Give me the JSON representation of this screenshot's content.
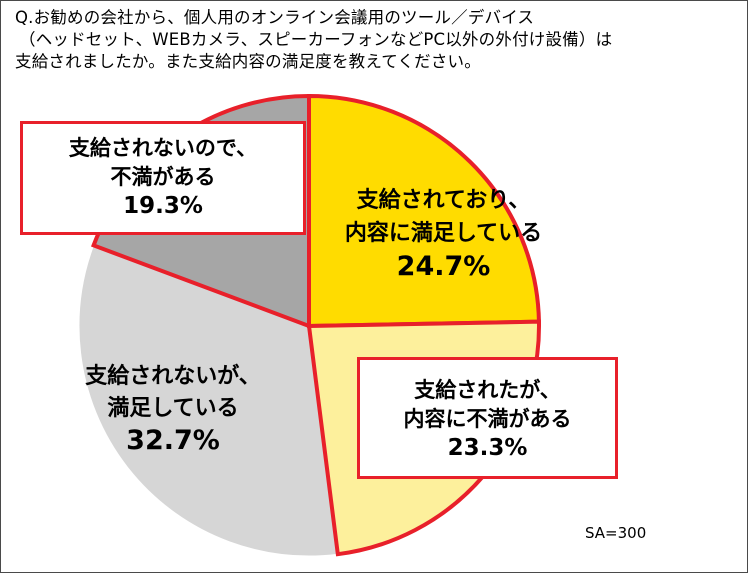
{
  "question": {
    "line1": "Q.お勧めの会社から、個人用のオンライン会議用のツール／デバイス",
    "line2": "（ヘッドセット、WEBカメラ、スピーカーフォンなどPC以外の外付け設備）は",
    "line3": "支給されましたか。また支給内容の満足度を教えてください。"
  },
  "sample_size": "SA=300",
  "colors": {
    "highlight_border": "#e8202a",
    "slice_supplied_satisfied": "#ffdc00",
    "slice_supplied_dissatisfied": "#fdf09c",
    "slice_not_supplied_satisfied": "#d6d6d6",
    "slice_not_supplied_dissatisfied": "#a6a6a6"
  },
  "chart_data": {
    "type": "pie",
    "start_angle": "12 o'clock",
    "direction": "clockwise",
    "slices": [
      {
        "label_line1": "支給されており、",
        "label_line2": "内容に満足している",
        "value": 24.7,
        "value_label": "24.7%"
      },
      {
        "label_line1": "支給されたが、",
        "label_line2": "内容に不満がある",
        "value": 23.3,
        "value_label": "23.3%"
      },
      {
        "label_line1": "支給されないが、",
        "label_line2": "満足している",
        "value": 32.7,
        "value_label": "32.7%"
      },
      {
        "label_line1": "支給されないので、",
        "label_line2": "不満がある",
        "value": 19.3,
        "value_label": "19.3%"
      }
    ]
  }
}
